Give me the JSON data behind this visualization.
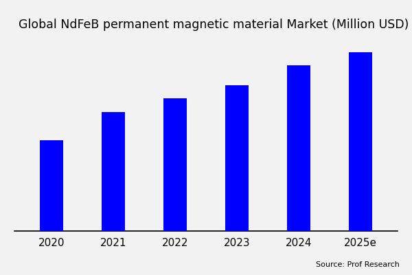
{
  "title": "Global NdFeB permanent magnetic material Market (Million USD)",
  "categories": [
    "2020",
    "2021",
    "2022",
    "2023",
    "2024",
    "2025e"
  ],
  "values": [
    55,
    72,
    80,
    88,
    100,
    108
  ],
  "bar_color": "#0000FF",
  "background_color": "#F2F2F2",
  "plot_bg_color": "#F2F2F2",
  "title_fontsize": 12.5,
  "source_text": "Source: Prof Research",
  "bar_width": 0.38
}
